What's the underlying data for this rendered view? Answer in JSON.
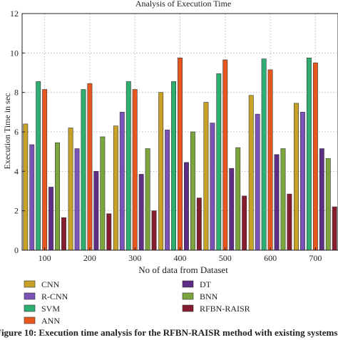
{
  "chart_data": {
    "type": "bar",
    "title": "Analysis of Execution Time",
    "xlabel": "No of data from Dataset",
    "ylabel": "Execution Time in sec",
    "categories": [
      "100",
      "200",
      "300",
      "400",
      "500",
      "600",
      "700"
    ],
    "ylim": [
      0,
      12
    ],
    "yticks": [
      "0",
      "2",
      "4",
      "6",
      "8",
      "10",
      "12"
    ],
    "grid": true,
    "legend_position": "bottom",
    "series": [
      {
        "name": "CNN",
        "color": "#c8a227",
        "values": [
          6.4,
          6.2,
          6.3,
          8.0,
          7.5,
          7.85,
          7.45
        ]
      },
      {
        "name": "R-CNN",
        "color": "#7a52b8",
        "values": [
          5.35,
          5.15,
          7.0,
          6.1,
          6.45,
          6.9,
          7.0
        ]
      },
      {
        "name": "SVM",
        "color": "#2fae72",
        "values": [
          8.55,
          8.15,
          8.55,
          8.55,
          8.95,
          9.7,
          9.75
        ]
      },
      {
        "name": "ANN",
        "color": "#e8581e",
        "values": [
          8.15,
          8.45,
          8.15,
          9.75,
          9.65,
          9.15,
          9.5
        ]
      },
      {
        "name": "DT",
        "color": "#5e2d86",
        "values": [
          3.2,
          4.0,
          3.85,
          4.45,
          4.15,
          4.85,
          5.15
        ]
      },
      {
        "name": "BNN",
        "color": "#7ca63d",
        "values": [
          5.45,
          5.75,
          5.15,
          6.0,
          5.2,
          5.15,
          4.65
        ]
      },
      {
        "name": "RFBN-RAISR",
        "color": "#851d2e",
        "values": [
          1.65,
          1.85,
          2.0,
          2.65,
          2.75,
          2.85,
          2.2
        ]
      }
    ]
  },
  "caption": "Figure 10: Execution time analysis for the RFBN-RAISR method with existing systems."
}
